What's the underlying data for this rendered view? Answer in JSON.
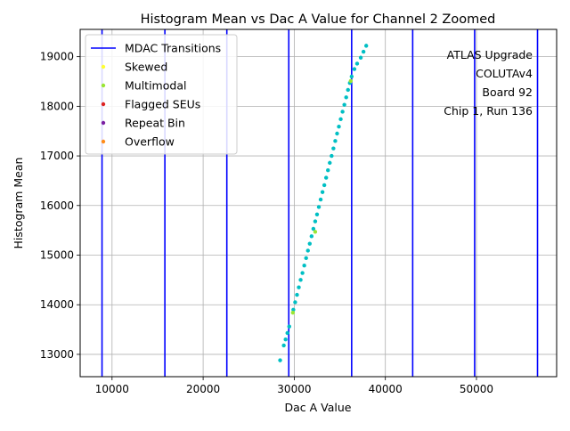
{
  "chart_data": {
    "type": "scatter",
    "title": "Histogram Mean vs Dac A Value for Channel 2 Zoomed",
    "xlabel": "Dac A Value",
    "ylabel": "Histogram Mean",
    "xlim": [
      6500,
      58800
    ],
    "ylim": [
      12550,
      19550
    ],
    "xticks": [
      10000,
      20000,
      30000,
      40000,
      50000
    ],
    "yticks": [
      13000,
      14000,
      15000,
      16000,
      17000,
      18000,
      19000
    ],
    "grid": true,
    "legend_position": "top-left",
    "legend": [
      {
        "label": "MDAC Transitions",
        "kind": "line",
        "color": "#0000ff"
      },
      {
        "label": "Skewed",
        "kind": "marker",
        "color": "#ffff33"
      },
      {
        "label": "Multimodal",
        "kind": "marker",
        "color": "#99e633"
      },
      {
        "label": "Flagged SEUs",
        "kind": "marker",
        "color": "#dd2222"
      },
      {
        "label": "Repeat Bin",
        "kind": "marker",
        "color": "#7a1fa2"
      },
      {
        "label": "Overflow",
        "kind": "marker",
        "color": "#ff8c1a"
      }
    ],
    "annotation_lines": [
      "ATLAS Upgrade",
      "COLUTAv4",
      "Board 92",
      "Chip 1, Run 136"
    ],
    "mdac_transitions": [
      8900,
      15800,
      22600,
      29400,
      36300,
      43000,
      49800,
      56700
    ],
    "mdac_color": "#0000ff",
    "series": [
      {
        "color": "#00bfc4",
        "points": [
          [
            28450,
            12880
          ],
          [
            28850,
            13180
          ],
          [
            29050,
            13300
          ],
          [
            29250,
            13430
          ],
          [
            29450,
            13560
          ],
          [
            29900,
            13900
          ],
          [
            30100,
            14050
          ],
          [
            30300,
            14200
          ],
          [
            30500,
            14350
          ],
          [
            30700,
            14500
          ],
          [
            30900,
            14640
          ],
          [
            31100,
            14790
          ],
          [
            31300,
            14940
          ],
          [
            31500,
            15090
          ],
          [
            31700,
            15230
          ],
          [
            31900,
            15380
          ],
          [
            32100,
            15530
          ],
          [
            32300,
            15680
          ],
          [
            32500,
            15820
          ],
          [
            32700,
            15970
          ],
          [
            32900,
            16120
          ],
          [
            33100,
            16270
          ],
          [
            33300,
            16410
          ],
          [
            33500,
            16560
          ],
          [
            33700,
            16710
          ],
          [
            33900,
            16860
          ],
          [
            34100,
            17000
          ],
          [
            34300,
            17150
          ],
          [
            34500,
            17300
          ],
          [
            34700,
            17450
          ],
          [
            34900,
            17590
          ],
          [
            35100,
            17740
          ],
          [
            35300,
            17890
          ],
          [
            35500,
            18030
          ],
          [
            35700,
            18180
          ],
          [
            35900,
            18330
          ],
          [
            36100,
            18470
          ],
          [
            36300,
            18600
          ],
          [
            36600,
            18750
          ],
          [
            36900,
            18860
          ],
          [
            37300,
            18980
          ],
          [
            37600,
            19100
          ],
          [
            37900,
            19220
          ]
        ]
      },
      {
        "color": "#99e633",
        "points": [
          [
            29850,
            13840
          ],
          [
            32300,
            15470
          ],
          [
            36200,
            18510
          ]
        ]
      }
    ]
  }
}
